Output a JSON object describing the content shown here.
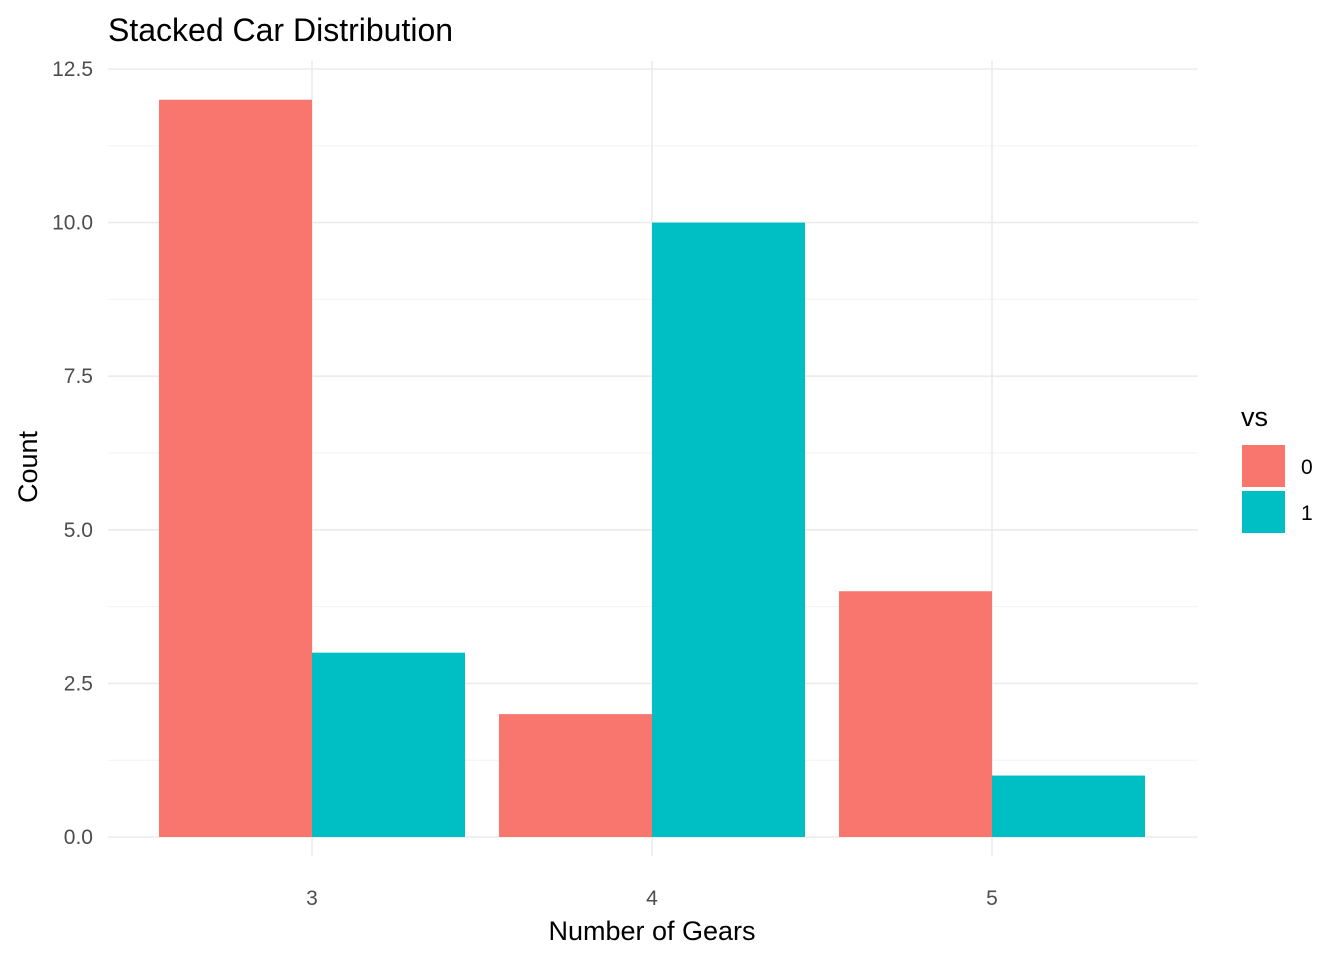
{
  "chart_data": {
    "type": "bar",
    "position": "dodge",
    "title": "Stacked Car Distribution",
    "xlabel": "Number of Gears",
    "ylabel": "Count",
    "categories": [
      "3",
      "4",
      "5"
    ],
    "series": [
      {
        "name": "0",
        "color": "#F8766D",
        "values": [
          12,
          2,
          4
        ]
      },
      {
        "name": "1",
        "color": "#00BFC4",
        "values": [
          3,
          10,
          1
        ]
      }
    ],
    "ylim": [
      0,
      12.5
    ],
    "yticks": [
      {
        "value": 0,
        "label": "0.0"
      },
      {
        "value": 2.5,
        "label": "2.5"
      },
      {
        "value": 5,
        "label": "5.0"
      },
      {
        "value": 7.5,
        "label": "7.5"
      },
      {
        "value": 10,
        "label": "10.0"
      },
      {
        "value": 12.5,
        "label": "12.5"
      }
    ],
    "y_minor_ticks": [
      1.25,
      3.75,
      6.25,
      8.75,
      11.25
    ],
    "legend": {
      "title": "vs",
      "placement": "right"
    },
    "grid": true,
    "gridline_color": "#EBEBEB",
    "tick_label_color": "#4D4D4D"
  }
}
